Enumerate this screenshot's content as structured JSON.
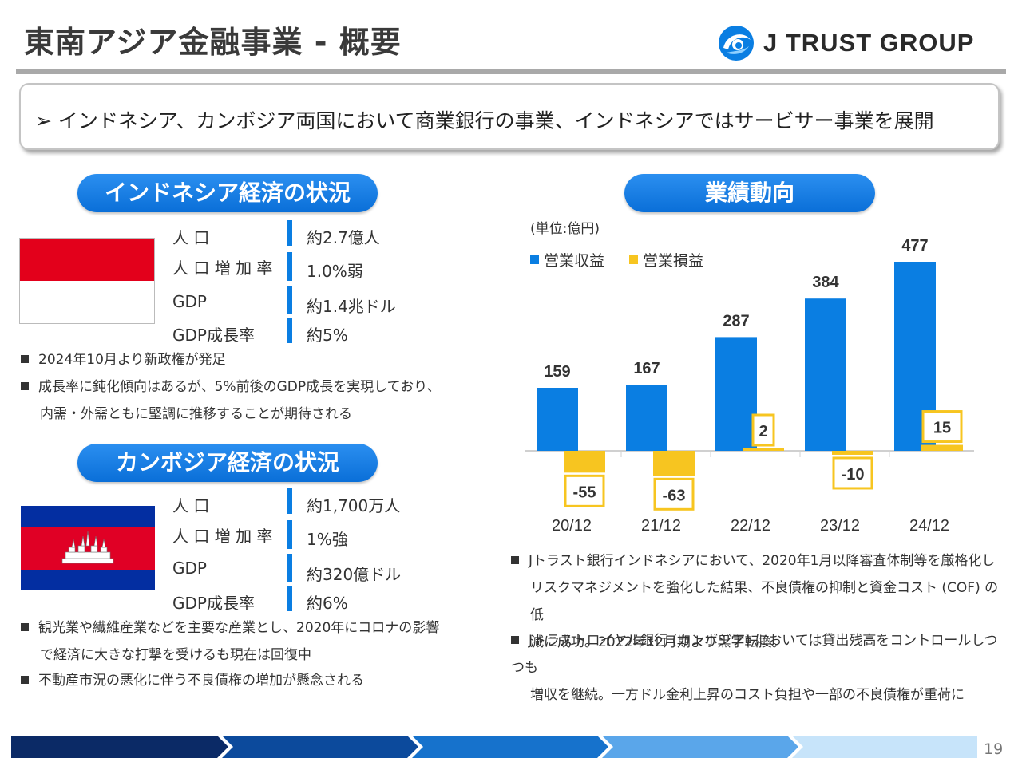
{
  "header": {
    "title": "東南アジア金融事業 - 概要",
    "logo_text": "J TRUST GROUP"
  },
  "summary": "➢ インドネシア、カンボジア両国において商業銀行の事業、インドネシアではサービサー事業を展開",
  "indonesia": {
    "heading": "インドネシア経済の状況",
    "stats": [
      {
        "label": "人 口",
        "value": "約2.7億人"
      },
      {
        "label": "人 口 増 加 率",
        "value": "1.0%弱"
      },
      {
        "label": "GDP",
        "value": "約1.4兆ドル"
      },
      {
        "label": "GDP成長率",
        "value": "約5%"
      }
    ],
    "bullets": [
      [
        "2024年10月より新政権が発足"
      ],
      [
        "成長率に鈍化傾向はあるが、5%前後のGDP成長を実現しており、",
        "内需・外需ともに堅調に推移することが期待される"
      ]
    ]
  },
  "cambodia": {
    "heading": "カンボジア経済の状況",
    "stats": [
      {
        "label": "人 口",
        "value": "約1,700万人"
      },
      {
        "label": "人 口 増 加 率",
        "value": "1%強"
      },
      {
        "label": "GDP",
        "value": "約320億ドル"
      },
      {
        "label": "GDP成長率",
        "value": "約6%"
      }
    ],
    "bullets": [
      [
        "観光業や繊維産業などを主要な産業とし、2020年にコロナの影響",
        "で経済に大きな打撃を受けるも現在は回復中"
      ],
      [
        "不動産市況の悪化に伴う不良債権の増加が懸念される"
      ]
    ]
  },
  "performance": {
    "heading": "業績動向",
    "unit": "(単位:億円)",
    "bullets": [
      [
        "Jトラスト銀行インドネシアにおいて、2020年1月以降審査体制等を厳格化し",
        "リスクマネジメントを強化した結果、不良債権の抑制と資金コスト (COF) の低",
        "減に成功。2022年12月期より黒字転換。"
      ],
      [
        "Jトラストロイヤル銀行 (カンボジア) においては貸出残高をコントロールしつつも",
        "増収を継続。一方ドル金利上昇のコスト負担や一部の不良債権が重荷に"
      ]
    ]
  },
  "chart_data": {
    "type": "bar",
    "categories": [
      "20/12",
      "21/12",
      "22/12",
      "23/12",
      "24/12"
    ],
    "series": [
      {
        "name": "営業収益",
        "values": [
          159,
          167,
          287,
          384,
          477
        ],
        "color": "#0a7ee2"
      },
      {
        "name": "営業損益",
        "values": [
          -55,
          -63,
          2,
          -10,
          15
        ],
        "color": "#f7c520"
      }
    ],
    "ylim": [
      -80,
      500
    ],
    "grid": false,
    "legend": "top-left"
  },
  "colors": {
    "accent_blue": "#0a7ee2",
    "accent_yellow": "#f7c520",
    "title_rule": "#a9a9a9"
  },
  "footer": {
    "page_number": "19"
  }
}
